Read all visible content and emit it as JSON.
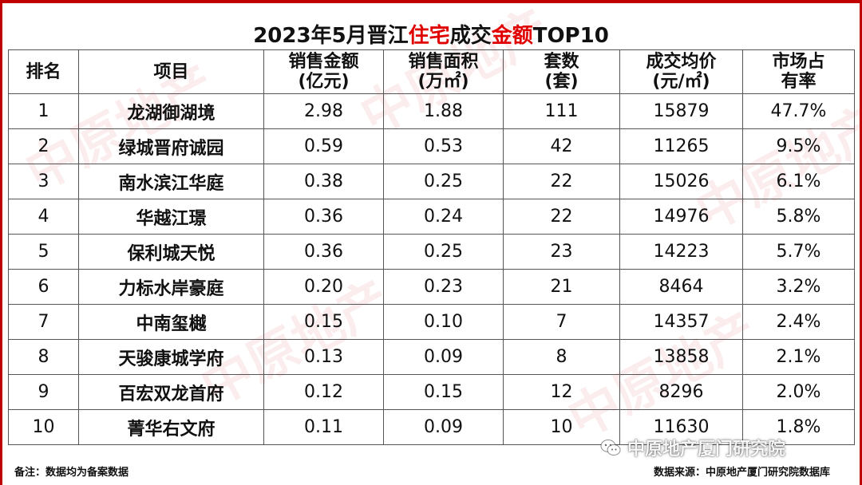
{
  "title": {
    "part1": "2023年5月晋江",
    "highlight1": "住宅",
    "part2": "成交",
    "highlight2": "金额",
    "part3": "TOP10"
  },
  "columns": [
    "排名",
    "项目",
    "销售金额\n(亿元)",
    "销售面积\n(万㎡)",
    "套数\n(套)",
    "成交均价\n(元/㎡)",
    "市场占\n有率"
  ],
  "chart_data": {
    "type": "table",
    "title": "2023年5月晋江住宅成交金额TOP10",
    "headers": [
      "排名",
      "项目",
      "销售金额(亿元)",
      "销售面积(万㎡)",
      "套数(套)",
      "成交均价(元/㎡)",
      "市场占有率"
    ],
    "rows": [
      [
        "1",
        "龙湖御湖境",
        "2.98",
        "1.88",
        "111",
        "15879",
        "47.7%"
      ],
      [
        "2",
        "绿城晋府诚园",
        "0.59",
        "0.53",
        "42",
        "11265",
        "9.5%"
      ],
      [
        "3",
        "南水滨江华庭",
        "0.38",
        "0.25",
        "22",
        "15026",
        "6.1%"
      ],
      [
        "4",
        "华越江璟",
        "0.36",
        "0.24",
        "22",
        "14976",
        "5.8%"
      ],
      [
        "5",
        "保利城天悦",
        "0.36",
        "0.25",
        "23",
        "14223",
        "5.7%"
      ],
      [
        "6",
        "力标水岸豪庭",
        "0.20",
        "0.23",
        "21",
        "8464",
        "3.2%"
      ],
      [
        "7",
        "中南玺樾",
        "0.15",
        "0.10",
        "7",
        "14357",
        "2.4%"
      ],
      [
        "8",
        "天骏康城学府",
        "0.13",
        "0.09",
        "8",
        "13858",
        "2.1%"
      ],
      [
        "9",
        "百宏双龙首府",
        "0.12",
        "0.15",
        "12",
        "8296",
        "2.0%"
      ],
      [
        "10",
        "菁华右文府",
        "0.11",
        "0.09",
        "10",
        "11630",
        "1.8%"
      ]
    ]
  },
  "footer": {
    "note": "备注：数据均为备案数据",
    "source": "数据来源：中原地产厦门研究院数据库"
  },
  "watermark": {
    "wechat_text": "中原地产厦门研究院",
    "brand_text": "中原地产"
  },
  "colors": {
    "accent": "#e00000",
    "border": "#c00000"
  }
}
